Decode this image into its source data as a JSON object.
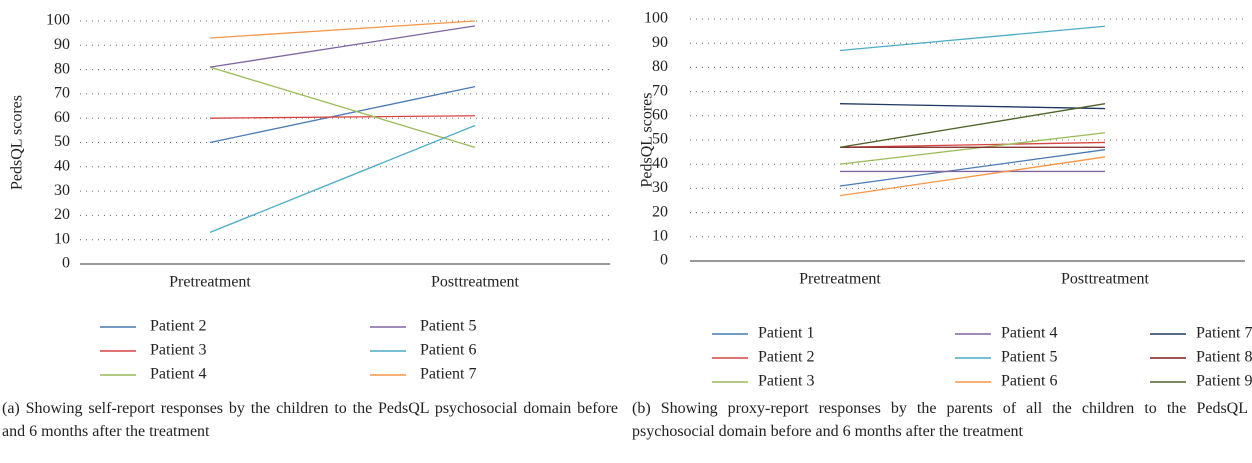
{
  "chart_data": [
    {
      "type": "line",
      "y_label": "PedsQL scores",
      "categories": [
        "Pretreatment",
        "Posttreatment"
      ],
      "ylim": [
        0,
        100
      ],
      "yticks": [
        0,
        10,
        20,
        30,
        40,
        50,
        60,
        70,
        80,
        90,
        100
      ],
      "grid": true,
      "legend_columns": 2,
      "caption": "(a) Showing self-report responses by the children to the PedsQL psychosocial domain before and 6 months after the treatment",
      "series": [
        {
          "name": "Patient 2",
          "color": "#4a7ab5",
          "values": [
            50,
            73
          ]
        },
        {
          "name": "Patient 3",
          "color": "#d64541",
          "values": [
            60,
            61
          ]
        },
        {
          "name": "Patient 4",
          "color": "#9bbb59",
          "values": [
            81,
            48
          ]
        },
        {
          "name": "Patient 5",
          "color": "#8064a2",
          "values": [
            81,
            98
          ]
        },
        {
          "name": "Patient 6",
          "color": "#4bacc6",
          "values": [
            13,
            57
          ]
        },
        {
          "name": "Patient 7",
          "color": "#f79646",
          "values": [
            93,
            100
          ]
        }
      ]
    },
    {
      "type": "line",
      "y_label": "PedsQL scores",
      "categories": [
        "Pretreatment",
        "Posttreatment"
      ],
      "ylim": [
        0,
        100
      ],
      "yticks": [
        0,
        10,
        20,
        30,
        40,
        50,
        60,
        70,
        80,
        90,
        100
      ],
      "grid": true,
      "legend_columns": 3,
      "caption": "(b) Showing proxy-report responses by the parents of all the children to the PedsQL psychosocial domain before and 6 months after the treatment",
      "series": [
        {
          "name": "Patient 1",
          "color": "#4a7ab5",
          "values": [
            31,
            46
          ]
        },
        {
          "name": "Patient 2",
          "color": "#d64541",
          "values": [
            47,
            49
          ]
        },
        {
          "name": "Patient 3",
          "color": "#9bbb59",
          "values": [
            40,
            53
          ]
        },
        {
          "name": "Patient 4",
          "color": "#8064a2",
          "values": [
            37,
            37
          ]
        },
        {
          "name": "Patient 5",
          "color": "#4bacc6",
          "values": [
            87,
            97
          ]
        },
        {
          "name": "Patient 6",
          "color": "#f79646",
          "values": [
            27,
            43
          ]
        },
        {
          "name": "Patient 7",
          "color": "#1f3864",
          "values": [
            65,
            63
          ]
        },
        {
          "name": "Patient 8",
          "color": "#7b1f1f",
          "values": [
            47,
            47
          ]
        },
        {
          "name": "Patient 9",
          "color": "#4f6228",
          "values": [
            47,
            65
          ]
        }
      ]
    }
  ]
}
